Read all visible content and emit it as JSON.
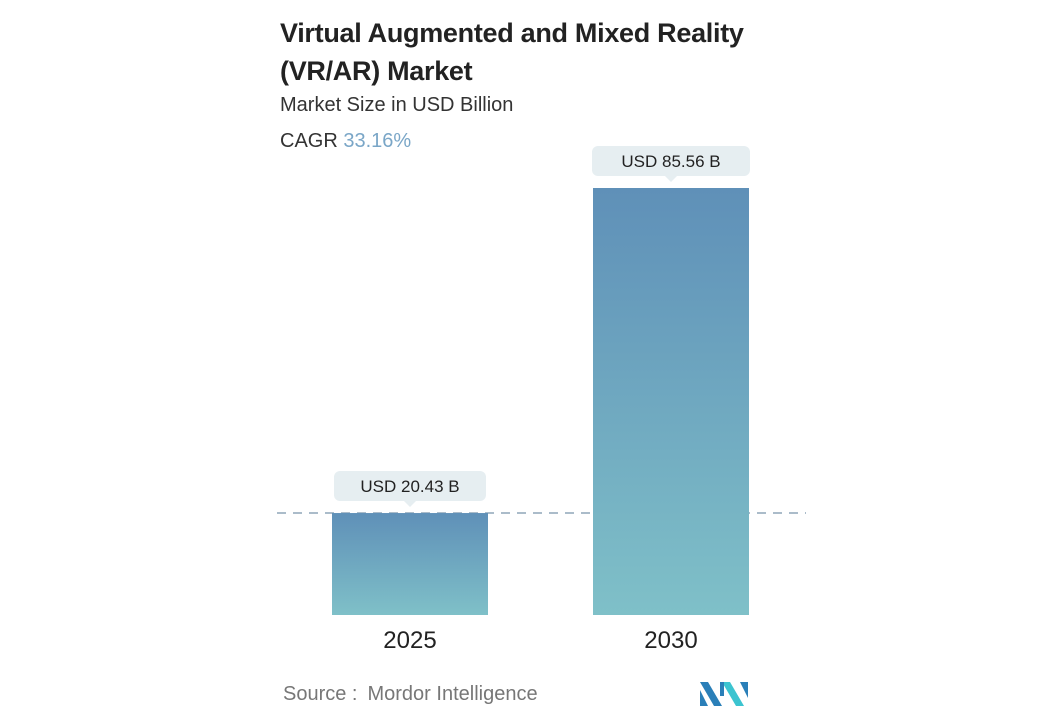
{
  "chart_data": {
    "type": "bar",
    "title": "Virtual Augmented and Mixed Reality (VR/AR) Market",
    "title_lines": [
      "Virtual Augmented and Mixed Reality",
      "(VR/AR) Market"
    ],
    "subtitle": "Market Size in USD Billion",
    "cagr_label": "CAGR",
    "cagr_value": "33.16%",
    "categories": [
      "2025",
      "2030"
    ],
    "values": [
      20.43,
      85.56
    ],
    "data_labels": [
      "USD 20.43 B",
      "USD 85.56 B"
    ],
    "reference_line_value": 20.43,
    "xlabel": "",
    "ylabel": "",
    "ylim": [
      0,
      85.56
    ],
    "grid": false,
    "colors": {
      "bar_top": "#5f90b8",
      "bar_bottom": "#7fc0c8",
      "label_bg": "#e6eef1",
      "dash": "#8fa6b8"
    }
  },
  "source": {
    "label": "Source :",
    "name": "Mordor Intelligence"
  }
}
